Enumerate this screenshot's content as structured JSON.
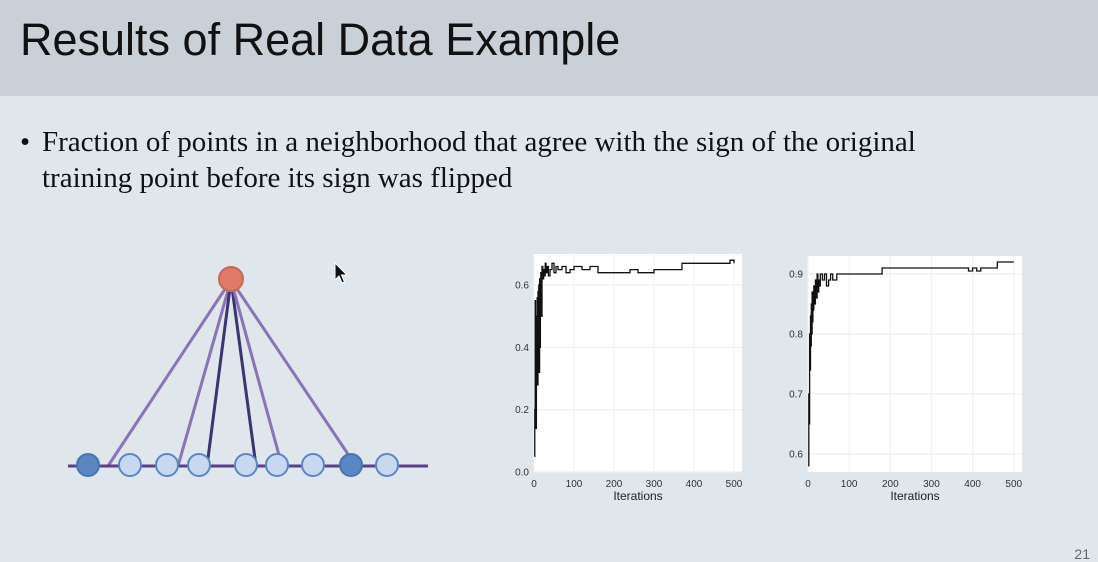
{
  "slide": {
    "title": "Results of Real Data Example",
    "bullet_symbol": "•",
    "bullet_lines": [
      "Fraction of points in a neighborhood that agree with the sign of the original",
      "training point before its sign was flipped"
    ],
    "page_number": "21"
  },
  "colors": {
    "title_band": "#c9d0d7",
    "background": "#dfe6ec",
    "top_node": "#e07a66",
    "dark_node": "#5b86c2",
    "light_node": "#c8d8ef",
    "purple_lines": "#8a74b3",
    "dark_lines": "#3c3470",
    "baseline": "#5a3f8e",
    "chart_panel": "#ffffff",
    "chart_line": "#111111"
  },
  "chart_data": [
    {
      "type": "line",
      "title": "",
      "xlabel": "Iterations",
      "ylabel": "",
      "xlim": [
        0,
        520
      ],
      "ylim": [
        0,
        0.7
      ],
      "x_ticks": [
        0,
        100,
        200,
        300,
        400,
        500
      ],
      "y_ticks": [
        0.0,
        0.2,
        0.4,
        0.6
      ],
      "y_tick_labels": [
        "0.0",
        "0.2",
        "0.4",
        "0.6"
      ],
      "grid": true,
      "series": [
        {
          "x": [
            1,
            2,
            3,
            4,
            5,
            6,
            7,
            8,
            9,
            10,
            11,
            12,
            13,
            14,
            15,
            16,
            17,
            18,
            20,
            22,
            24,
            26,
            28,
            30,
            33,
            36,
            40,
            45,
            50,
            55,
            60,
            70,
            80,
            90,
            100,
            120,
            140,
            160,
            180,
            200,
            220,
            240,
            260,
            280,
            300,
            320,
            340,
            360,
            370,
            380,
            400,
            420,
            440,
            460,
            480,
            490,
            500
          ],
          "y": [
            0.05,
            0.2,
            0.55,
            0.3,
            0.14,
            0.5,
            0.35,
            0.56,
            0.28,
            0.58,
            0.45,
            0.6,
            0.32,
            0.62,
            0.4,
            0.55,
            0.64,
            0.5,
            0.66,
            0.62,
            0.65,
            0.63,
            0.67,
            0.64,
            0.66,
            0.63,
            0.65,
            0.67,
            0.64,
            0.66,
            0.65,
            0.66,
            0.64,
            0.65,
            0.66,
            0.65,
            0.66,
            0.64,
            0.64,
            0.64,
            0.64,
            0.65,
            0.64,
            0.64,
            0.65,
            0.65,
            0.65,
            0.65,
            0.67,
            0.67,
            0.67,
            0.67,
            0.67,
            0.67,
            0.67,
            0.68,
            0.67
          ]
        }
      ]
    },
    {
      "type": "line",
      "title": "",
      "xlabel": "Iterations",
      "ylabel": "",
      "xlim": [
        0,
        520
      ],
      "ylim": [
        0.57,
        0.93
      ],
      "x_ticks": [
        0,
        100,
        200,
        300,
        400,
        500
      ],
      "y_ticks": [
        0.6,
        0.7,
        0.8,
        0.9
      ],
      "y_tick_labels": [
        "0.6",
        "0.7",
        "0.8",
        "0.9"
      ],
      "grid": true,
      "series": [
        {
          "x": [
            1,
            2,
            3,
            4,
            5,
            6,
            7,
            8,
            9,
            10,
            11,
            12,
            14,
            16,
            18,
            20,
            22,
            24,
            26,
            28,
            30,
            35,
            40,
            45,
            50,
            55,
            60,
            70,
            80,
            90,
            100,
            120,
            140,
            160,
            180,
            200,
            220,
            240,
            260,
            280,
            300,
            320,
            340,
            360,
            380,
            390,
            400,
            410,
            420,
            440,
            460,
            480,
            500
          ],
          "y": [
            0.58,
            0.7,
            0.65,
            0.8,
            0.74,
            0.83,
            0.78,
            0.85,
            0.8,
            0.87,
            0.82,
            0.84,
            0.88,
            0.85,
            0.89,
            0.86,
            0.9,
            0.87,
            0.89,
            0.88,
            0.9,
            0.89,
            0.9,
            0.88,
            0.89,
            0.9,
            0.89,
            0.9,
            0.9,
            0.9,
            0.9,
            0.9,
            0.9,
            0.9,
            0.91,
            0.91,
            0.91,
            0.91,
            0.91,
            0.91,
            0.91,
            0.91,
            0.91,
            0.91,
            0.91,
            0.905,
            0.91,
            0.905,
            0.91,
            0.91,
            0.92,
            0.92,
            0.92
          ]
        }
      ]
    }
  ]
}
